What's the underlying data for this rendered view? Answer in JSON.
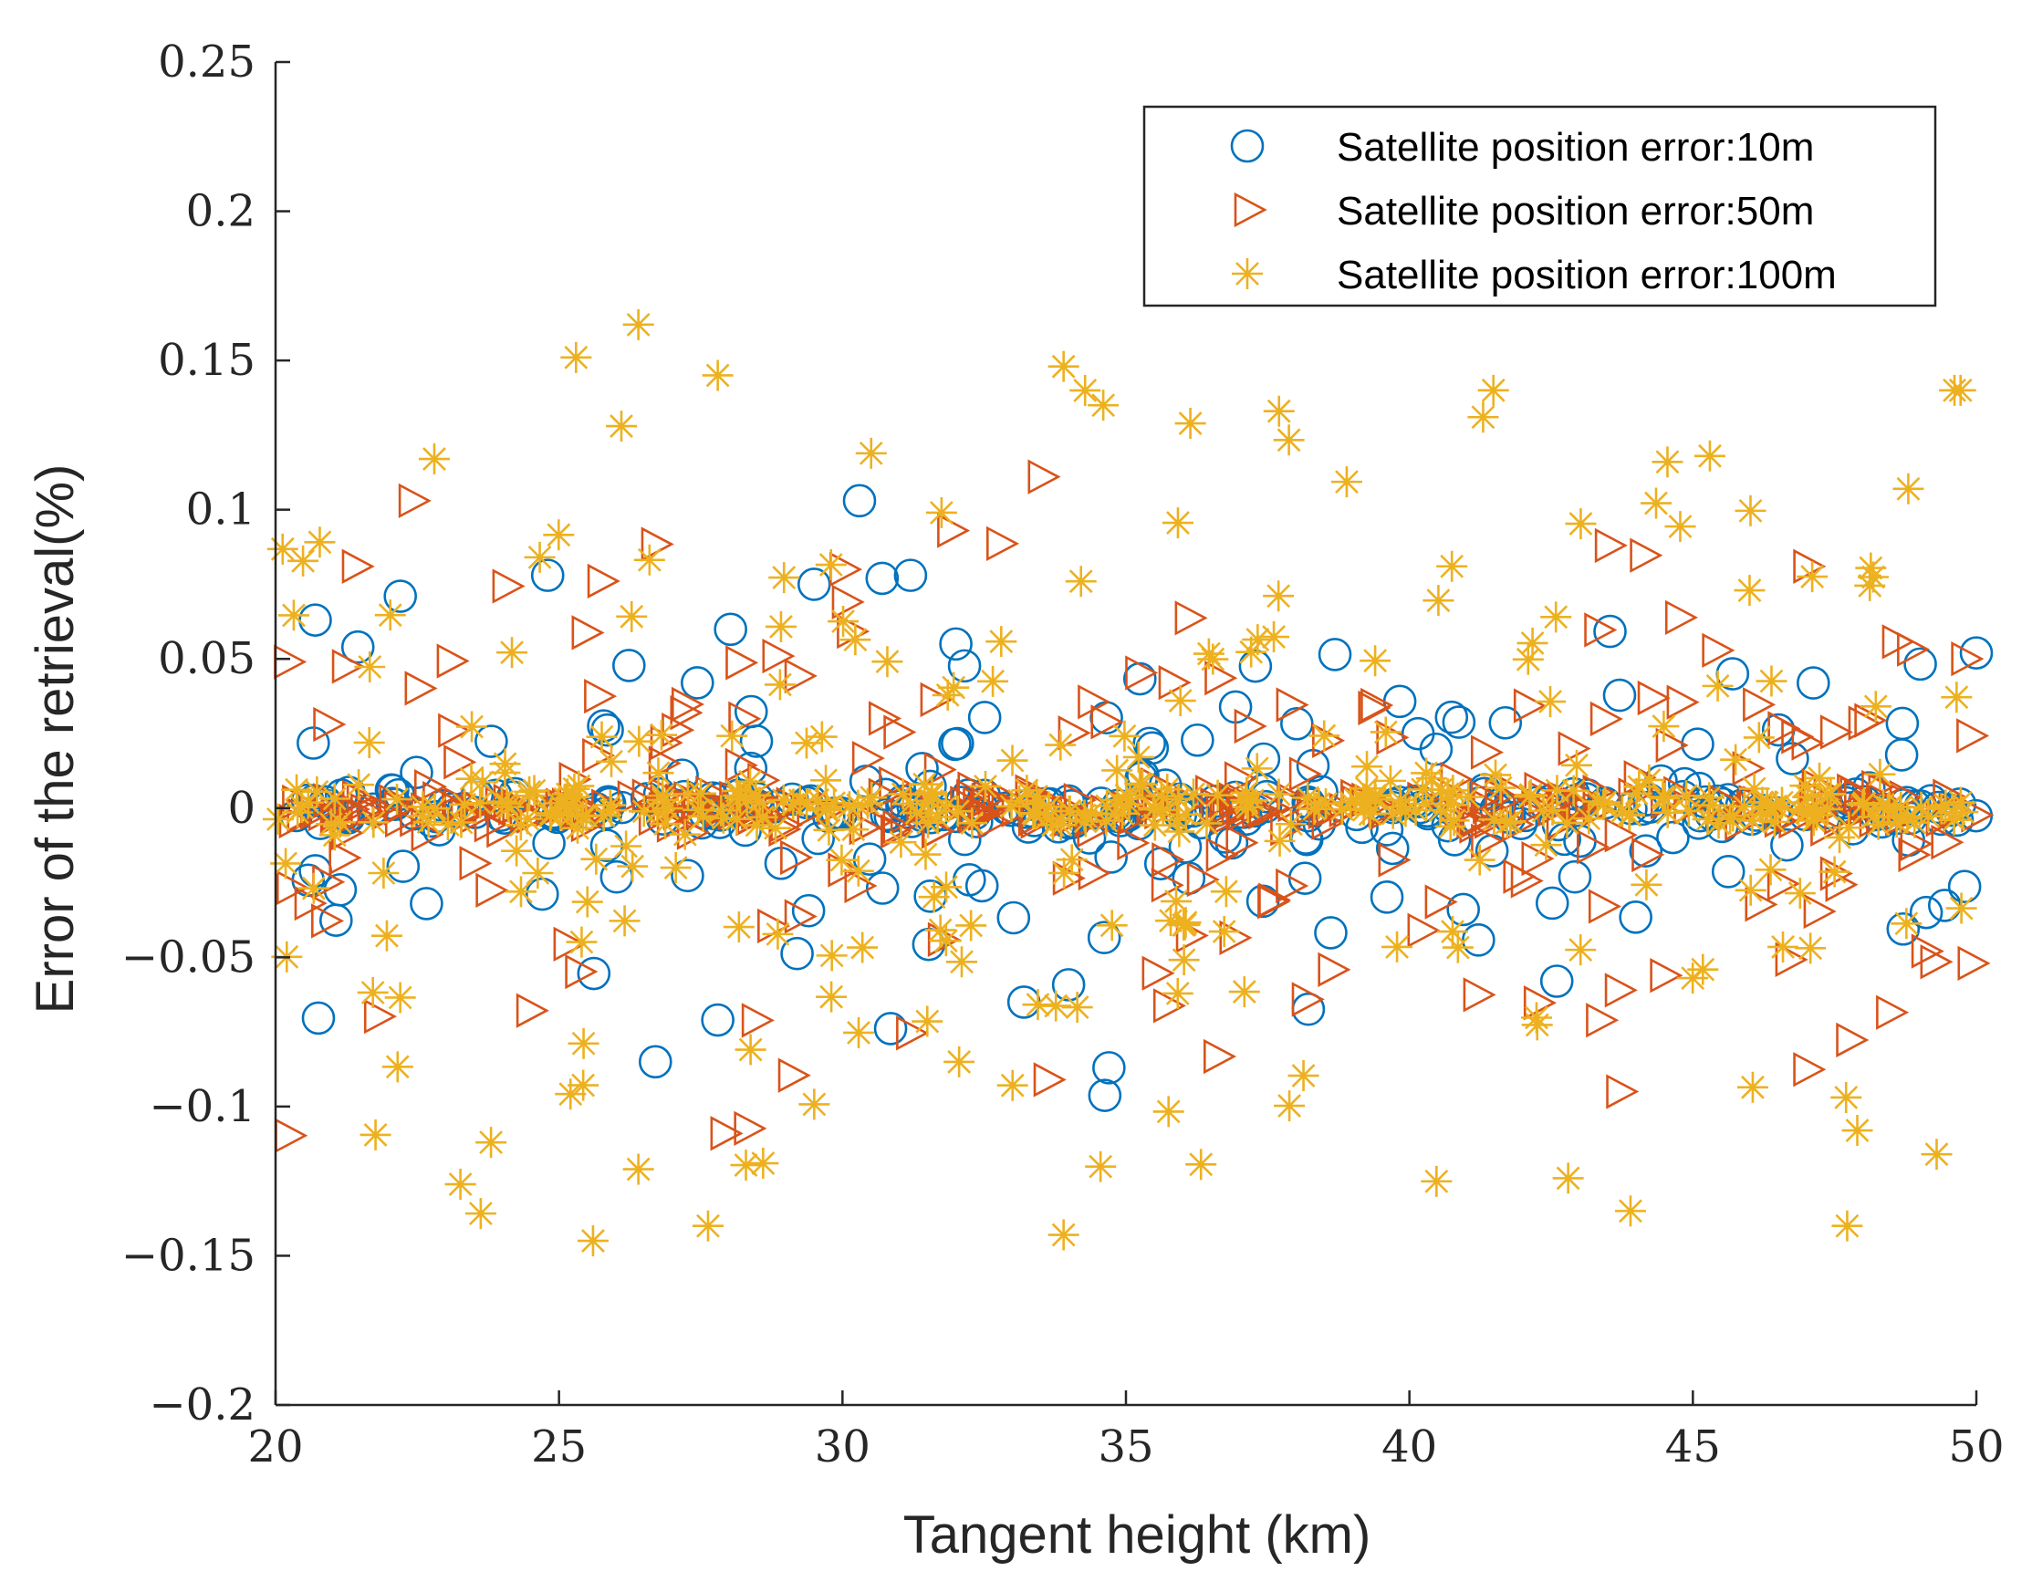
{
  "chart_data": {
    "type": "scatter",
    "title": "",
    "xlabel": "Tangent height (km)",
    "ylabel": "Error of the retrieval(%)",
    "xlim": [
      20,
      50
    ],
    "ylim": [
      -0.2,
      0.25
    ],
    "grid": false,
    "legend_position": "top-right",
    "x_ticks": [
      20,
      25,
      30,
      35,
      40,
      45,
      50
    ],
    "x_tick_labels": [
      "20",
      "25",
      "30",
      "35",
      "40",
      "45",
      "50"
    ],
    "y_ticks": [
      -0.2,
      -0.15,
      -0.1,
      -0.05,
      0,
      0.05,
      0.1,
      0.15,
      0.2,
      0.25
    ],
    "y_tick_labels": [
      "−0.2",
      "−0.15",
      "−0.1",
      "−0.05",
      "0",
      "0.05",
      "0.1",
      "0.15",
      "0.2",
      "0.25"
    ],
    "series": [
      {
        "name": "Satellite position error:10m",
        "marker": "circle",
        "color": "#0072BD",
        "sample_count": 320,
        "spread": 0.032,
        "core_fraction": 0.55,
        "core_spread": 0.003,
        "highlights": [
          [
            30.3,
            0.103
          ],
          [
            22.2,
            0.071
          ],
          [
            20.7,
            0.063
          ],
          [
            24.8,
            0.078
          ],
          [
            29.5,
            0.075
          ],
          [
            30.7,
            0.077
          ],
          [
            26.7,
            -0.085
          ],
          [
            34.7,
            -0.087
          ],
          [
            27.8,
            -0.071
          ],
          [
            33.2,
            -0.065
          ],
          [
            31.2,
            0.078
          ],
          [
            50.0,
            0.052
          ],
          [
            32.0,
            0.055
          ],
          [
            42.6,
            -0.058
          ],
          [
            45.7,
            0.045
          ]
        ]
      },
      {
        "name": "Satellite position error:50m",
        "marker": "triangle-right",
        "color": "#D95319",
        "sample_count": 360,
        "spread": 0.042,
        "core_fraction": 0.55,
        "core_spread": 0.003,
        "highlights": [
          [
            22.4,
            0.103
          ],
          [
            33.5,
            0.111
          ],
          [
            31.9,
            0.093
          ],
          [
            21.4,
            0.081
          ],
          [
            27.9,
            -0.109
          ],
          [
            33.6,
            -0.091
          ],
          [
            43.7,
            -0.095
          ],
          [
            20.2,
            0.049
          ],
          [
            47.0,
            0.081
          ],
          [
            43.5,
            0.088
          ],
          [
            30.0,
            0.08
          ],
          [
            49.9,
            -0.052
          ]
        ]
      },
      {
        "name": "Satellite position error:100m",
        "marker": "asterisk",
        "color": "#EDB120",
        "sample_count": 440,
        "spread": 0.055,
        "core_fraction": 0.5,
        "core_spread": 0.004,
        "highlights": [
          [
            26.4,
            0.162
          ],
          [
            25.3,
            0.151
          ],
          [
            27.8,
            0.145
          ],
          [
            33.9,
            0.148
          ],
          [
            34.6,
            0.135
          ],
          [
            37.7,
            0.133
          ],
          [
            41.3,
            0.131
          ],
          [
            26.1,
            0.128
          ],
          [
            25.6,
            -0.145
          ],
          [
            33.9,
            -0.143
          ],
          [
            43.9,
            -0.135
          ],
          [
            42.8,
            -0.124
          ],
          [
            49.3,
            -0.116
          ],
          [
            26.4,
            -0.121
          ],
          [
            28.6,
            -0.119
          ],
          [
            45.3,
            0.118
          ],
          [
            22.8,
            0.117
          ],
          [
            48.8,
            0.107
          ],
          [
            23.8,
            -0.112
          ],
          [
            47.9,
            -0.108
          ]
        ]
      }
    ]
  }
}
